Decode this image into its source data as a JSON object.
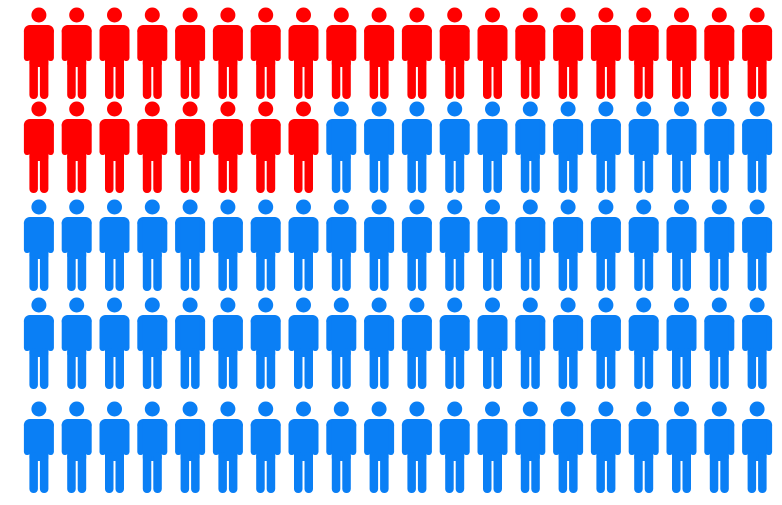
{
  "chart_data": {
    "type": "pictogram",
    "series": [
      {
        "color": "#ff0000",
        "values": [
          28
        ]
      },
      {
        "color": "#0a7ff5",
        "values": [
          72
        ]
      }
    ]
  }
}
